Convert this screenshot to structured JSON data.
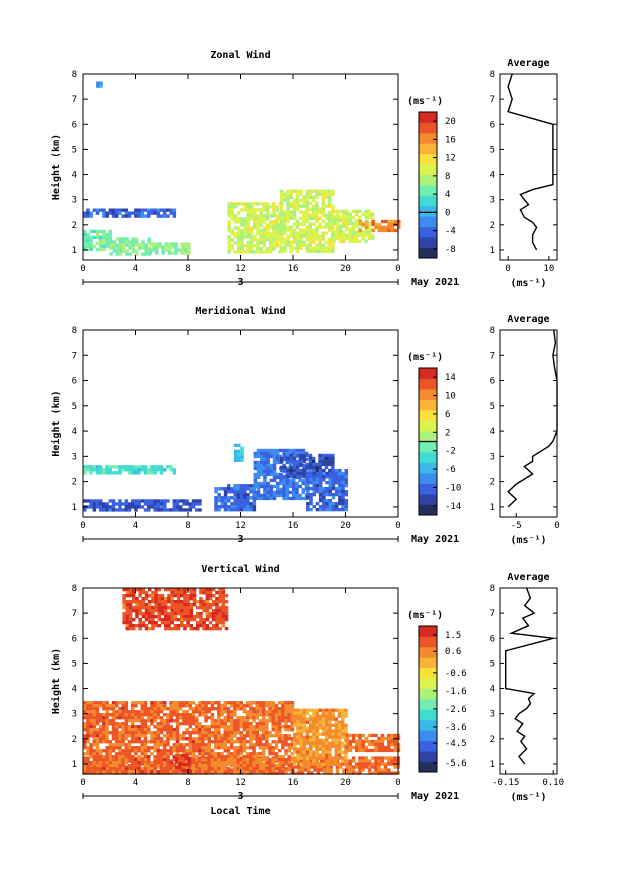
{
  "figure": {
    "month_label": "May 2021",
    "xlabel": "Local Time",
    "date_label": "3"
  },
  "chart_data": [
    {
      "type": "heatmap",
      "title": "Zonal Wind",
      "ylabel": "Height (km)",
      "xlabel": "",
      "x_ticks": [
        "0",
        "4",
        "8",
        "12",
        "16",
        "20",
        "0"
      ],
      "y_ticks": [
        "1",
        "2",
        "3",
        "4",
        "5",
        "6",
        "7",
        "8"
      ],
      "xlim": [
        0,
        24
      ],
      "ylim": [
        0.6,
        8.0
      ],
      "colorbar": {
        "unit": "(ms⁻¹)",
        "ticks": [
          "20",
          "16",
          "12",
          "8",
          "4",
          "0",
          "-4",
          "-8"
        ],
        "range": [
          -10,
          22
        ],
        "marker": 0
      },
      "data_regions": [
        {
          "x0": 0,
          "x1": 2,
          "y0": 1.0,
          "y1": 1.8,
          "value": 5
        },
        {
          "x0": 2,
          "x1": 5,
          "y0": 0.9,
          "y1": 1.5,
          "value": 6
        },
        {
          "x0": 5,
          "x1": 8,
          "y0": 0.9,
          "y1": 1.3,
          "value": 6
        },
        {
          "x0": 0,
          "x1": 7,
          "y0": 2.35,
          "y1": 2.65,
          "value": -4
        },
        {
          "x0": 11,
          "x1": 15,
          "y0": 0.9,
          "y1": 2.9,
          "value": 9
        },
        {
          "x0": 15,
          "x1": 19,
          "y0": 0.9,
          "y1": 3.4,
          "value": 9
        },
        {
          "x0": 19,
          "x1": 22,
          "y0": 1.4,
          "y1": 2.6,
          "value": 9
        },
        {
          "x0": 21,
          "x1": 24,
          "y0": 1.8,
          "y1": 2.2,
          "value": 16
        },
        {
          "x0": 1,
          "x1": 1.3,
          "y0": 7.5,
          "y1": 7.7,
          "value": -2
        }
      ],
      "profile": {
        "title": "Average",
        "xlabel": "(ms⁻¹)",
        "x_ticks": [
          "0",
          "10"
        ],
        "xlim": [
          -2,
          12
        ],
        "heights": [
          1.0,
          1.3,
          1.6,
          1.9,
          2.1,
          2.3,
          2.6,
          2.8,
          3.0,
          3.2,
          3.4,
          3.6,
          4.0,
          4.5,
          5.0,
          5.5,
          6.0,
          6.5,
          7.0,
          7.5,
          8.0
        ],
        "values": [
          7,
          6,
          6,
          7,
          6,
          4,
          3,
          5,
          4,
          3,
          6,
          11,
          11,
          11,
          11,
          11,
          11,
          0,
          1,
          0,
          1
        ]
      }
    },
    {
      "type": "heatmap",
      "title": "Meridional Wind",
      "ylabel": "Height (km)",
      "xlabel": "",
      "x_ticks": [
        "0",
        "4",
        "8",
        "12",
        "16",
        "20",
        "0"
      ],
      "y_ticks": [
        "1",
        "2",
        "3",
        "4",
        "5",
        "6",
        "7",
        "8"
      ],
      "xlim": [
        0,
        24
      ],
      "ylim": [
        0.6,
        8.0
      ],
      "colorbar": {
        "unit": "(ms⁻¹)",
        "ticks": [
          "14",
          "10",
          "6",
          "2",
          "-2",
          "-6",
          "-10",
          "-14"
        ],
        "range": [
          -16,
          16
        ],
        "marker": 0
      },
      "data_regions": [
        {
          "x0": 0,
          "x1": 7,
          "y0": 2.4,
          "y1": 2.65,
          "value": -3
        },
        {
          "x0": 0,
          "x1": 9,
          "y0": 0.9,
          "y1": 1.3,
          "value": -11
        },
        {
          "x0": 10,
          "x1": 13,
          "y0": 0.9,
          "y1": 1.9,
          "value": -10
        },
        {
          "x0": 13,
          "x1": 17,
          "y0": 1.3,
          "y1": 3.3,
          "value": -9
        },
        {
          "x0": 15,
          "x1": 19,
          "y0": 2.2,
          "y1": 3.1,
          "value": -12
        },
        {
          "x0": 11.5,
          "x1": 12.2,
          "y0": 2.8,
          "y1": 3.5,
          "value": -4
        },
        {
          "x0": 17,
          "x1": 20,
          "y0": 0.9,
          "y1": 2.5,
          "value": -10
        }
      ],
      "profile": {
        "title": "Average",
        "xlabel": "(ms⁻¹)",
        "x_ticks": [
          "-5",
          "0"
        ],
        "xlim": [
          -7,
          0
        ],
        "heights": [
          1.0,
          1.3,
          1.6,
          1.9,
          2.1,
          2.3,
          2.6,
          2.8,
          3.0,
          3.2,
          3.4,
          3.6,
          4.0,
          4.5,
          5.0,
          5.5,
          6.0,
          6.5,
          7.0,
          7.5,
          8.0
        ],
        "values": [
          -6,
          -5,
          -6,
          -5,
          -4,
          -3,
          -4,
          -3,
          -3,
          -2,
          -1,
          -0.5,
          0,
          0,
          0,
          0,
          0,
          -0.3,
          -0.5,
          -0.2,
          -0.4
        ]
      }
    },
    {
      "type": "heatmap",
      "title": "Vertical Wind",
      "ylabel": "Height (km)",
      "xlabel": "Local Time",
      "x_ticks": [
        "0",
        "4",
        "8",
        "12",
        "16",
        "20",
        "0"
      ],
      "y_ticks": [
        "1",
        "2",
        "3",
        "4",
        "5",
        "6",
        "7",
        "8"
      ],
      "xlim": [
        0,
        24
      ],
      "ylim": [
        0.6,
        8.0
      ],
      "colorbar": {
        "unit": "(ms⁻¹)",
        "ticks": [
          "1.5",
          "0.6",
          "-0.6",
          "-1.6",
          "-2.6",
          "-3.6",
          "-4.5",
          "-5.6"
        ],
        "range": [
          -6.1,
          2.0
        ],
        "marker": null
      },
      "data_regions": [
        {
          "x0": 0,
          "x1": 24,
          "y0": 0.7,
          "y1": 1.3,
          "value": 0.9
        },
        {
          "x0": 0,
          "x1": 9,
          "y0": 0.7,
          "y1": 3.5,
          "value": 1.0
        },
        {
          "x0": 9,
          "x1": 16,
          "y0": 0.7,
          "y1": 3.5,
          "value": 0.8
        },
        {
          "x0": 16,
          "x1": 20,
          "y0": 1.0,
          "y1": 3.2,
          "value": 0.4
        },
        {
          "x0": 20,
          "x1": 24,
          "y0": 1.6,
          "y1": 2.2,
          "value": 0.9
        },
        {
          "x0": 3,
          "x1": 11,
          "y0": 6.4,
          "y1": 8.0,
          "value": 1.3
        },
        {
          "x0": 7,
          "x1": 8,
          "y0": 0.7,
          "y1": 1.4,
          "value": 1.6
        }
      ],
      "profile": {
        "title": "Average",
        "xlabel": "(ms⁻¹)",
        "x_ticks": [
          "-0.15",
          "0.10"
        ],
        "xlim": [
          -0.18,
          0.12
        ],
        "heights": [
          1.0,
          1.3,
          1.6,
          1.9,
          2.1,
          2.3,
          2.6,
          2.8,
          3.0,
          3.2,
          3.4,
          3.6,
          3.8,
          4.0,
          4.5,
          5.0,
          5.5,
          6.0,
          6.2,
          6.5,
          6.8,
          7.0,
          7.3,
          7.6,
          8.0
        ],
        "values": [
          -0.05,
          -0.08,
          -0.04,
          -0.07,
          -0.05,
          -0.09,
          -0.06,
          -0.1,
          -0.08,
          -0.04,
          -0.02,
          -0.03,
          0.0,
          -0.15,
          -0.15,
          -0.15,
          -0.15,
          0.1,
          -0.12,
          -0.03,
          -0.06,
          0.0,
          -0.05,
          -0.02,
          -0.04
        ]
      }
    }
  ],
  "colors": {
    "scale": [
      "#23305c",
      "#2d43a8",
      "#3a62e0",
      "#3d8cf0",
      "#3ab8e8",
      "#40dcd4",
      "#72ecb0",
      "#aaf27a",
      "#dcf24e",
      "#f8e23a",
      "#f8b436",
      "#f48a2e",
      "#ec5626",
      "#d62a22"
    ]
  }
}
